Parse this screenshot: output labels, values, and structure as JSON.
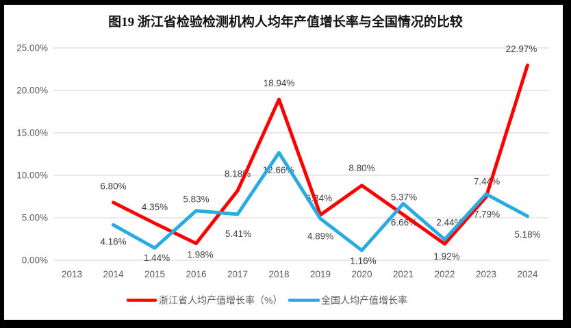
{
  "page": {
    "border_color": "#000000",
    "background_color": "#ffffff"
  },
  "chart_data": {
    "type": "line",
    "title": "图19  浙江省检验检测机构人均年产值增长率与全国情况的比较",
    "xlabel": "",
    "ylabel": "",
    "categories": [
      "2013",
      "2014",
      "2015",
      "2016",
      "2017",
      "2018",
      "2019",
      "2020",
      "2021",
      "2022",
      "2023",
      "2024"
    ],
    "y_ticks": [
      "0.00%",
      "5.00%",
      "10.00%",
      "15.00%",
      "20.00%",
      "25.00%"
    ],
    "y_tick_values": [
      0,
      5,
      10,
      15,
      20,
      25
    ],
    "ylim": [
      0,
      25
    ],
    "grid": true,
    "legend_position": "bottom",
    "gridline_color": "#d9d9d9",
    "tick_color": "#595959",
    "label_color": "#3f3f3f",
    "series": [
      {
        "name": "浙江省人均产值增长率（%）",
        "color": "#ff0000",
        "values": [
          null,
          6.8,
          4.35,
          1.98,
          8.18,
          18.94,
          5.34,
          8.8,
          5.37,
          1.92,
          7.44,
          22.97
        ],
        "labels": [
          null,
          "6.80%",
          "4.35%",
          "1.98%",
          "8.18%",
          "18.94%",
          "5.34%",
          "8.80%",
          "5.37%",
          "1.92%",
          "7.44%",
          "22.97%"
        ],
        "label_dx": [
          null,
          0,
          0,
          6,
          0,
          0,
          -2,
          0,
          1,
          3,
          1,
          -9
        ],
        "label_dy": [
          null,
          -19,
          -19,
          21,
          -20,
          -19,
          -20,
          -21,
          -21,
          23,
          -18,
          -19
        ]
      },
      {
        "name": "全国人均产值增长率",
        "color": "#29abe2",
        "values": [
          null,
          4.16,
          1.44,
          5.83,
          5.41,
          12.66,
          4.89,
          1.16,
          6.66,
          2.44,
          7.79,
          5.18
        ],
        "labels": [
          null,
          "4.16%",
          "1.44%",
          "5.83%",
          "5.41%",
          "12.66%",
          "4.89%",
          "1.16%",
          "6.66%",
          "2.44%",
          "7.79%",
          "5.18%"
        ],
        "label_dx": [
          null,
          0,
          3,
          0,
          1,
          -1,
          0,
          2,
          1,
          7,
          1,
          0
        ],
        "label_dy": [
          null,
          29,
          19,
          -12,
          33,
          30,
          30,
          20,
          32,
          -20,
          34,
          31
        ]
      }
    ]
  }
}
